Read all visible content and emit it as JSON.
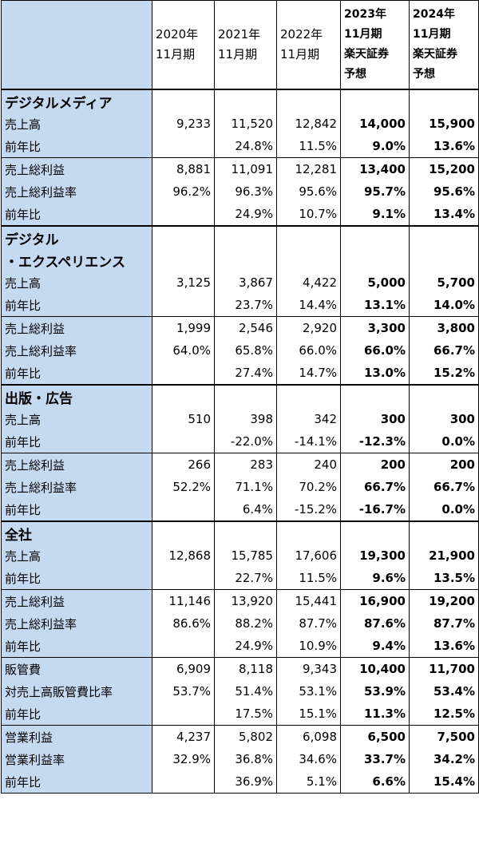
{
  "header": {
    "corner": "",
    "cols": [
      {
        "line1": "2020年",
        "line2": "11月期",
        "line3": "",
        "line4": ""
      },
      {
        "line1": "2021年",
        "line2": "11月期",
        "line3": "",
        "line4": ""
      },
      {
        "line1": "2022年",
        "line2": "11月期",
        "line3": "",
        "line4": ""
      },
      {
        "line1": "2023年",
        "line2": "11月期",
        "line3": "楽天証券",
        "line4": "予想"
      },
      {
        "line1": "2024年",
        "line2": "11月期",
        "line3": "楽天証券",
        "line4": "予想"
      }
    ]
  },
  "rows": [
    {
      "label": "デジタルメディア",
      "section": true,
      "vals": [
        "",
        "",
        "",
        "",
        ""
      ]
    },
    {
      "label": "売上高",
      "vals": [
        "9,233",
        "11,520",
        "12,842",
        "14,000",
        "15,900"
      ]
    },
    {
      "label": "前年比",
      "vals": [
        "",
        "24.8%",
        "11.5%",
        "9.0%",
        "13.6%"
      ]
    },
    {
      "label": "売上総利益",
      "vals": [
        "8,881",
        "11,091",
        "12,281",
        "13,400",
        "15,200"
      ]
    },
    {
      "label": "売上総利益率",
      "vals": [
        "96.2%",
        "96.3%",
        "95.6%",
        "95.7%",
        "95.6%"
      ]
    },
    {
      "label": "前年比",
      "vals": [
        "",
        "24.9%",
        "10.7%",
        "9.1%",
        "13.4%"
      ]
    },
    {
      "label": "デジタル",
      "section": true,
      "vals": [
        "",
        "",
        "",
        "",
        ""
      ]
    },
    {
      "label": "・エクスペリエンス",
      "section": true,
      "vals": [
        "",
        "",
        "",
        "",
        ""
      ]
    },
    {
      "label": "売上高",
      "vals": [
        "3,125",
        "3,867",
        "4,422",
        "5,000",
        "5,700"
      ]
    },
    {
      "label": "前年比",
      "vals": [
        "",
        "23.7%",
        "14.4%",
        "13.1%",
        "14.0%"
      ]
    },
    {
      "label": "売上総利益",
      "vals": [
        "1,999",
        "2,546",
        "2,920",
        "3,300",
        "3,800"
      ]
    },
    {
      "label": "売上総利益率",
      "vals": [
        "64.0%",
        "65.8%",
        "66.0%",
        "66.0%",
        "66.7%"
      ]
    },
    {
      "label": "前年比",
      "vals": [
        "",
        "27.4%",
        "14.7%",
        "13.0%",
        "15.2%"
      ]
    },
    {
      "label": "出版・広告",
      "section": true,
      "vals": [
        "",
        "",
        "",
        "",
        ""
      ]
    },
    {
      "label": "売上高",
      "vals": [
        "510",
        "398",
        "342",
        "300",
        "300"
      ]
    },
    {
      "label": "前年比",
      "vals": [
        "",
        "-22.0%",
        "-14.1%",
        "-12.3%",
        "0.0%"
      ]
    },
    {
      "label": "売上総利益",
      "vals": [
        "266",
        "283",
        "240",
        "200",
        "200"
      ]
    },
    {
      "label": "売上総利益率",
      "vals": [
        "52.2%",
        "71.1%",
        "70.2%",
        "66.7%",
        "66.7%"
      ]
    },
    {
      "label": "前年比",
      "vals": [
        "",
        "6.4%",
        "-15.2%",
        "-16.7%",
        "0.0%"
      ]
    },
    {
      "label": "全社",
      "section": true,
      "vals": [
        "",
        "",
        "",
        "",
        ""
      ]
    },
    {
      "label": "売上高",
      "vals": [
        "12,868",
        "15,785",
        "17,606",
        "19,300",
        "21,900"
      ]
    },
    {
      "label": "前年比",
      "vals": [
        "",
        "22.7%",
        "11.5%",
        "9.6%",
        "13.5%"
      ]
    },
    {
      "label": "売上総利益",
      "vals": [
        "11,146",
        "13,920",
        "15,441",
        "16,900",
        "19,200"
      ]
    },
    {
      "label": "売上総利益率",
      "vals": [
        "86.6%",
        "88.2%",
        "87.7%",
        "87.6%",
        "87.7%"
      ]
    },
    {
      "label": "前年比",
      "vals": [
        "",
        "24.9%",
        "10.9%",
        "9.4%",
        "13.6%"
      ]
    },
    {
      "label": "販管費",
      "vals": [
        "6,909",
        "8,118",
        "9,343",
        "10,400",
        "11,700"
      ]
    },
    {
      "label": "対売上高販管費比率",
      "vals": [
        "53.7%",
        "51.4%",
        "53.1%",
        "53.9%",
        "53.4%"
      ]
    },
    {
      "label": "前年比",
      "vals": [
        "",
        "17.5%",
        "15.1%",
        "11.3%",
        "12.5%"
      ]
    },
    {
      "label": "営業利益",
      "vals": [
        "4,237",
        "5,802",
        "6,098",
        "6,500",
        "7,500"
      ]
    },
    {
      "label": "営業利益率",
      "vals": [
        "32.9%",
        "36.8%",
        "34.6%",
        "33.7%",
        "34.2%"
      ]
    },
    {
      "label": "前年比",
      "vals": [
        "",
        "36.9%",
        "5.1%",
        "6.6%",
        "15.4%"
      ]
    }
  ]
}
